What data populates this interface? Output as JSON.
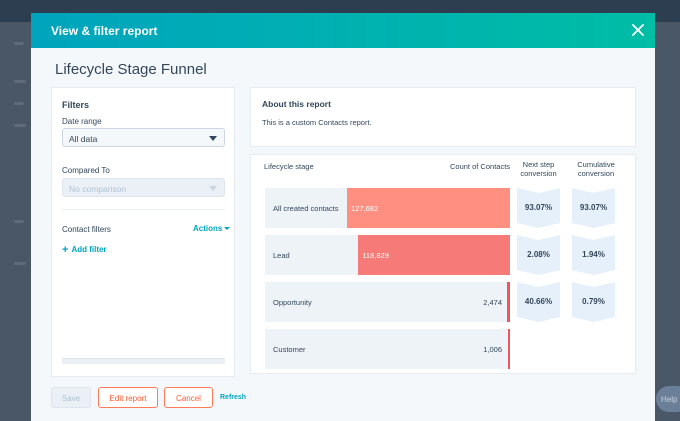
{
  "modal": {
    "title": "View & filter report",
    "report_title": "Lifecycle Stage Funnel"
  },
  "filters": {
    "heading": "Filters",
    "date_range_label": "Date range",
    "date_range_value": "All data",
    "compared_to_label": "Compared To",
    "compared_to_value": "No comparison",
    "contact_filters_label": "Contact filters",
    "actions_label": "Actions",
    "add_filter_label": "Add filter"
  },
  "about": {
    "title": "About this report",
    "text": "This is a custom Contacts report."
  },
  "funnel_headers": {
    "stage": "Lifecycle stage",
    "count": "Count of Contacts",
    "next_step_1": "Next step",
    "next_step_2": "conversion",
    "cumulative_1": "Cumulative",
    "cumulative_2": "conversion"
  },
  "chart_data": {
    "type": "bar",
    "categories": [
      "All created contacts",
      "Lead",
      "Opportunity",
      "Customer"
    ],
    "values": [
      127682,
      118829,
      2474,
      1006
    ],
    "value_labels": [
      "127,682",
      "118,829",
      "2,474",
      "1,006"
    ],
    "next_step_conversion": [
      "93.07%",
      "2.08%",
      "40.66%"
    ],
    "cumulative_conversion": [
      "93.07%",
      "1.94%",
      "0.79%"
    ],
    "bar_colors": [
      "#ff8f80",
      "#f57a78",
      "#f2545b",
      "#f2545b"
    ]
  },
  "footer": {
    "save_label": "Save",
    "edit_label": "Edit report",
    "cancel_label": "Cancel",
    "refresh_label": "Refresh"
  },
  "background": {
    "help_label": "Help"
  },
  "colors": {
    "header_start": "#00a4bd",
    "header_end": "#00bda5",
    "accent": "#ff7a59",
    "link": "#00a4bd"
  }
}
